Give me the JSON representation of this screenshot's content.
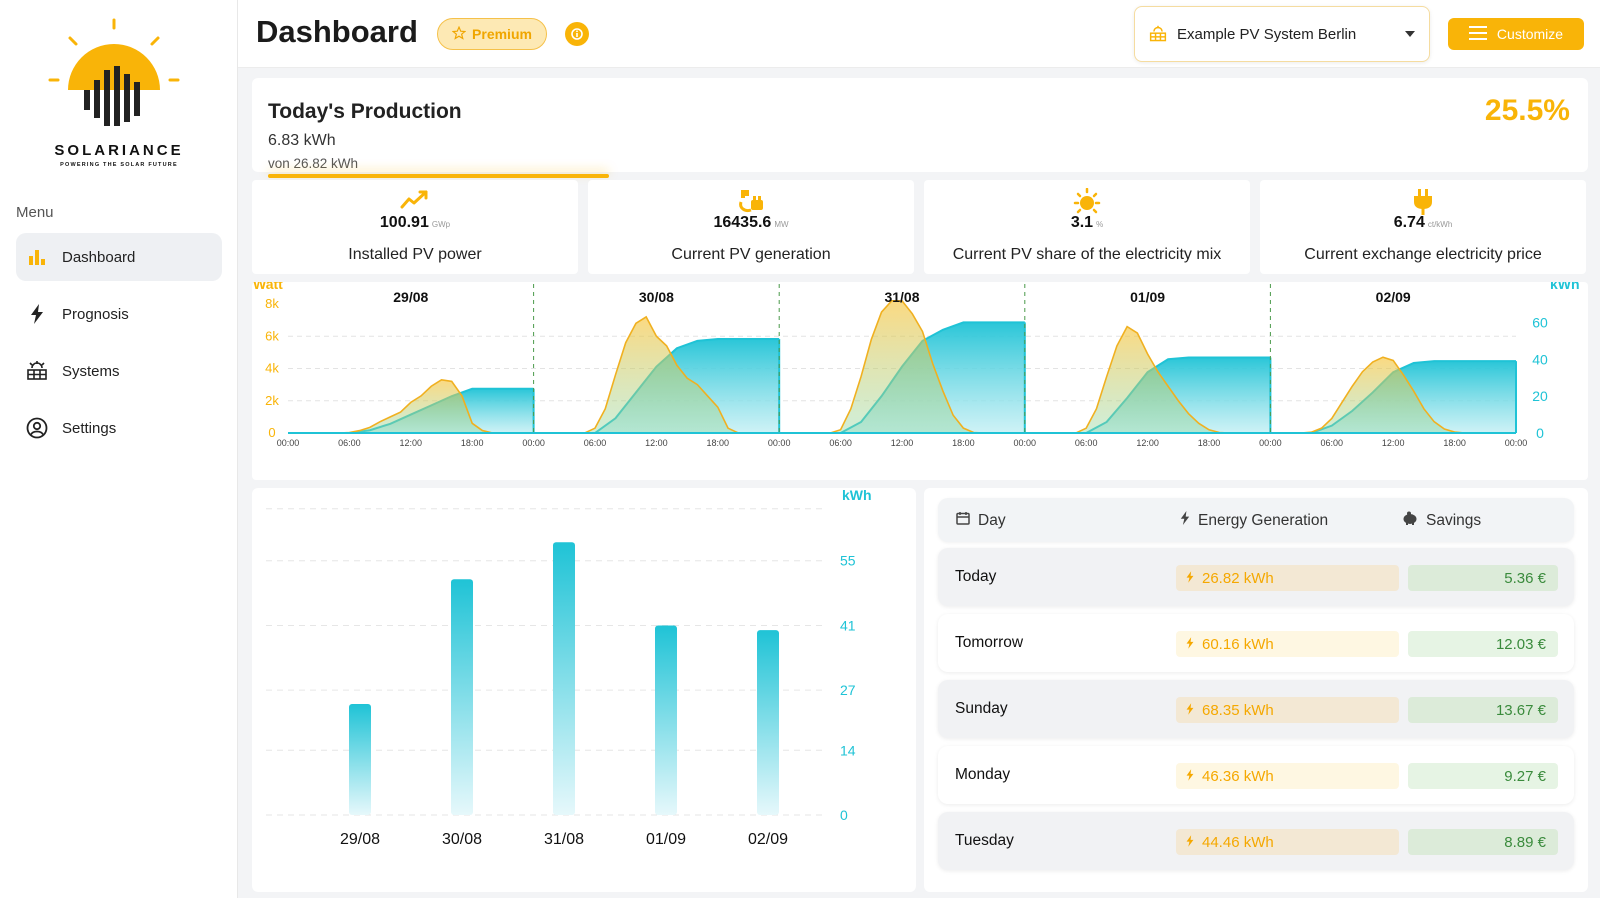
{
  "colors": {
    "accent": "#f9b408",
    "teal": "#1fc3d6",
    "sun": "#f9b408",
    "green": "#3a8b3c"
  },
  "sidebar": {
    "brand": "SOLARIANCE",
    "tagline": "POWERING THE SOLAR FUTURE",
    "menu_label": "Menu",
    "items": [
      {
        "label": "Dashboard",
        "icon": "bar-chart-icon",
        "active": true
      },
      {
        "label": "Prognosis",
        "icon": "lightning-icon",
        "active": false
      },
      {
        "label": "Systems",
        "icon": "solar-panel-icon",
        "active": false
      },
      {
        "label": "Settings",
        "icon": "user-circle-icon",
        "active": false
      }
    ]
  },
  "header": {
    "title": "Dashboard",
    "premium_label": "Premium",
    "system_name": "Example PV System Berlin",
    "customize_label": "Customize"
  },
  "production": {
    "title": "Today's Production",
    "value": "6.83 kWh",
    "of_total": "von 26.82 kWh",
    "percent": "25.5%",
    "progress": 0.255
  },
  "stats": [
    {
      "value": "100.91",
      "unit": "GWp",
      "label": "Installed PV power",
      "icon": "trend-line-icon"
    },
    {
      "value": "16435.6",
      "unit": "MW",
      "label": "Current PV generation",
      "icon": "plug-panel-icon"
    },
    {
      "value": "3.1",
      "unit": "%",
      "label": "Current PV share of the electricity mix",
      "icon": "sun-icon"
    },
    {
      "value": "6.74",
      "unit": "ct/kWh",
      "label": "Current exchange electricity price",
      "icon": "plug-icon"
    }
  ],
  "chart_data": [
    {
      "type": "area",
      "left_unit": "Watt",
      "right_unit": "kWh",
      "left_ticks": [
        "0",
        "2k",
        "4k",
        "6k",
        "8k"
      ],
      "left_ylim": [
        0,
        8000
      ],
      "right_ticks": [
        "0",
        "20",
        "40",
        "60"
      ],
      "right_ylim": [
        0,
        70
      ],
      "days": [
        "29/08",
        "30/08",
        "31/08",
        "01/09",
        "02/09"
      ],
      "x_ticks": [
        "00:00",
        "06:00",
        "12:00",
        "18:00"
      ],
      "x_end_tick": "00:00",
      "series": [
        {
          "key": "power",
          "axis": "left",
          "days": [
            [
              [
                0,
                0
              ],
              [
                5,
                0
              ],
              [
                6,
                30
              ],
              [
                7,
                150
              ],
              [
                8,
                350
              ],
              [
                9,
                700
              ],
              [
                10,
                1000
              ],
              [
                11,
                1300
              ],
              [
                12,
                1900
              ],
              [
                13,
                2300
              ],
              [
                14,
                2900
              ],
              [
                15,
                3300
              ],
              [
                16,
                3200
              ],
              [
                17,
                2300
              ],
              [
                18,
                600
              ],
              [
                19,
                150
              ],
              [
                20,
                0
              ],
              [
                24,
                0
              ]
            ],
            [
              [
                0,
                0
              ],
              [
                5,
                0
              ],
              [
                6,
                300
              ],
              [
                7,
                1500
              ],
              [
                8,
                3600
              ],
              [
                9,
                5600
              ],
              [
                10,
                6800
              ],
              [
                11,
                7200
              ],
              [
                12,
                6000
              ],
              [
                13,
                5400
              ],
              [
                14,
                4200
              ],
              [
                15,
                3400
              ],
              [
                16,
                3000
              ],
              [
                17,
                2300
              ],
              [
                18,
                1600
              ],
              [
                19,
                300
              ],
              [
                20,
                0
              ],
              [
                24,
                0
              ]
            ],
            [
              [
                0,
                0
              ],
              [
                5,
                0
              ],
              [
                6,
                200
              ],
              [
                7,
                1500
              ],
              [
                8,
                3500
              ],
              [
                9,
                5800
              ],
              [
                10,
                7500
              ],
              [
                11,
                8200
              ],
              [
                12,
                8200
              ],
              [
                13,
                7400
              ],
              [
                14,
                6300
              ],
              [
                15,
                4300
              ],
              [
                16,
                2600
              ],
              [
                17,
                1100
              ],
              [
                18,
                300
              ],
              [
                19,
                30
              ],
              [
                20,
                0
              ],
              [
                24,
                0
              ]
            ],
            [
              [
                0,
                0
              ],
              [
                5,
                0
              ],
              [
                6,
                300
              ],
              [
                7,
                1500
              ],
              [
                8,
                3500
              ],
              [
                9,
                5400
              ],
              [
                10,
                6600
              ],
              [
                11,
                6200
              ],
              [
                12,
                4900
              ],
              [
                13,
                3800
              ],
              [
                14,
                2900
              ],
              [
                15,
                2000
              ],
              [
                16,
                1200
              ],
              [
                17,
                600
              ],
              [
                18,
                200
              ],
              [
                19,
                30
              ],
              [
                20,
                0
              ],
              [
                24,
                0
              ]
            ],
            [
              [
                0,
                0
              ],
              [
                3,
                0
              ],
              [
                4,
                50
              ],
              [
                5,
                300
              ],
              [
                6,
                900
              ],
              [
                7,
                1900
              ],
              [
                8,
                2900
              ],
              [
                9,
                3800
              ],
              [
                10,
                4400
              ],
              [
                11,
                4700
              ],
              [
                12,
                4500
              ],
              [
                13,
                3600
              ],
              [
                14,
                2600
              ],
              [
                15,
                1500
              ],
              [
                16,
                700
              ],
              [
                17,
                250
              ],
              [
                18,
                60
              ],
              [
                19,
                0
              ],
              [
                24,
                0
              ]
            ]
          ]
        },
        {
          "key": "energy",
          "axis": "right",
          "days": [
            [
              [
                0,
                0
              ],
              [
                6,
                0
              ],
              [
                8,
                1.5
              ],
              [
                10,
                5
              ],
              [
                12,
                10
              ],
              [
                14,
                15
              ],
              [
                16,
                20
              ],
              [
                18,
                24
              ],
              [
                24,
                24
              ]
            ],
            [
              [
                0,
                0
              ],
              [
                6,
                0
              ],
              [
                8,
                8
              ],
              [
                10,
                22
              ],
              [
                12,
                36
              ],
              [
                14,
                46
              ],
              [
                16,
                50
              ],
              [
                18,
                51
              ],
              [
                24,
                51
              ]
            ],
            [
              [
                0,
                0
              ],
              [
                6,
                0
              ],
              [
                8,
                6
              ],
              [
                10,
                20
              ],
              [
                12,
                36
              ],
              [
                14,
                50
              ],
              [
                16,
                56
              ],
              [
                18,
                60
              ],
              [
                24,
                60
              ]
            ],
            [
              [
                0,
                0
              ],
              [
                6,
                0
              ],
              [
                8,
                6
              ],
              [
                10,
                19
              ],
              [
                12,
                33
              ],
              [
                14,
                40
              ],
              [
                16,
                41
              ],
              [
                18,
                41
              ],
              [
                24,
                41
              ]
            ],
            [
              [
                0,
                0
              ],
              [
                4,
                0
              ],
              [
                6,
                4
              ],
              [
                8,
                12
              ],
              [
                10,
                22
              ],
              [
                12,
                33
              ],
              [
                14,
                38
              ],
              [
                16,
                39
              ],
              [
                18,
                39
              ],
              [
                24,
                39
              ]
            ]
          ]
        }
      ]
    },
    {
      "type": "bar",
      "unit": "kWh",
      "categories": [
        "29/08",
        "30/08",
        "31/08",
        "01/09",
        "02/09"
      ],
      "values": [
        24,
        51,
        59,
        41,
        40
      ],
      "ylim": [
        0,
        69
      ],
      "y_ticks": [
        "0",
        "14",
        "27",
        "41",
        "55"
      ],
      "y_tick_values": [
        0,
        14,
        27,
        41,
        55
      ]
    }
  ],
  "table": {
    "headers": {
      "day": "Day",
      "energy": "Energy Generation",
      "savings": "Savings"
    },
    "rows": [
      {
        "day": "Today",
        "energy": "26.82 kWh",
        "savings": "5.36 €"
      },
      {
        "day": "Tomorrow",
        "energy": "60.16 kWh",
        "savings": "12.03 €"
      },
      {
        "day": "Sunday",
        "energy": "68.35 kWh",
        "savings": "13.67 €"
      },
      {
        "day": "Monday",
        "energy": "46.36 kWh",
        "savings": "9.27 €"
      },
      {
        "day": "Tuesday",
        "energy": "44.46 kWh",
        "savings": "8.89 €"
      }
    ]
  }
}
